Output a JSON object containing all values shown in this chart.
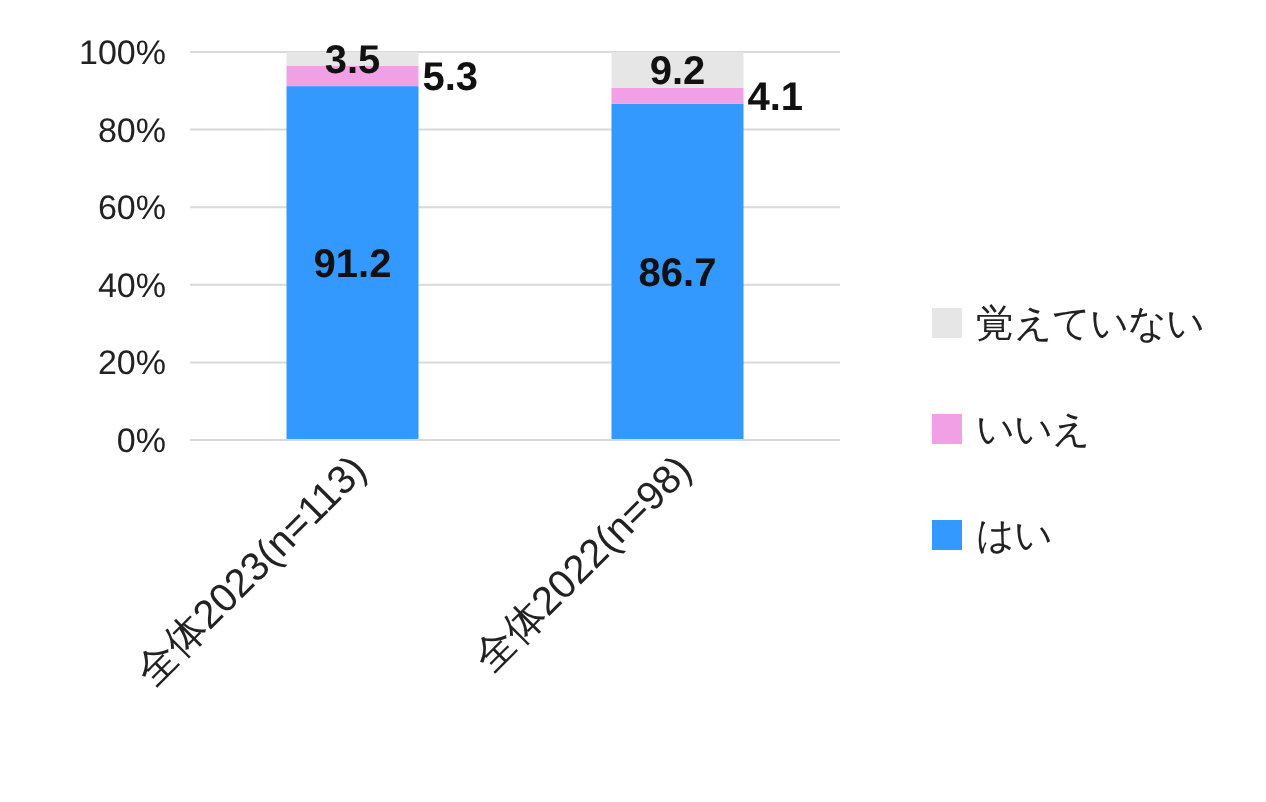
{
  "chart_data": {
    "type": "bar",
    "stacked": true,
    "data_labels": true,
    "grid": "y",
    "legend": "right",
    "categories": [
      "全体2023(n=113)",
      "全体2022(n=98)"
    ],
    "ylim": [
      0,
      100
    ],
    "yticks": [
      {
        "value": 0,
        "label": "0%"
      },
      {
        "value": 20,
        "label": "20%"
      },
      {
        "value": 40,
        "label": "40%"
      },
      {
        "value": 60,
        "label": "60%"
      },
      {
        "value": 80,
        "label": "80%"
      },
      {
        "value": 100,
        "label": "100%"
      }
    ],
    "series": [
      {
        "name": "はい",
        "color": "#3399ff",
        "values": [
          91.2,
          86.7
        ]
      },
      {
        "name": "いいえ",
        "color": "#f2a0e6",
        "values": [
          5.3,
          4.1
        ]
      },
      {
        "name": "覚えていない",
        "color": "#e6e6e6",
        "values": [
          3.5,
          9.2
        ]
      }
    ]
  }
}
